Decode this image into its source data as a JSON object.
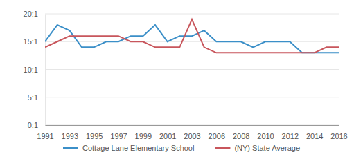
{
  "chart_data": {
    "type": "line",
    "categories": [
      "1991",
      null,
      "1993",
      null,
      "1995",
      null,
      "1997",
      null,
      "1999",
      null,
      "2001",
      null,
      "2003",
      null,
      "2006",
      null,
      "2008",
      null,
      "2010",
      null,
      "2012",
      null,
      "2014",
      null,
      "2016"
    ],
    "series": [
      {
        "name": "Cottage Lane Elementary School",
        "color": "#3b8fc8",
        "values": [
          15,
          18,
          17,
          14,
          14,
          15,
          15,
          16,
          16,
          18,
          15,
          16,
          16,
          17,
          15,
          15,
          15,
          14,
          15,
          15,
          15,
          13,
          13,
          13,
          13
        ]
      },
      {
        "name": "(NY) State Average",
        "color": "#c8565c",
        "values": [
          14,
          15,
          16,
          16,
          16,
          16,
          16,
          15,
          15,
          14,
          14,
          14,
          19,
          14,
          13,
          13,
          13,
          13,
          13,
          13,
          13,
          13,
          13,
          14,
          14
        ]
      }
    ],
    "ylim": [
      0,
      20
    ],
    "yticks": [
      {
        "value": 0,
        "label": "0:1"
      },
      {
        "value": 5,
        "label": "5:1"
      },
      {
        "value": 10,
        "label": "10:1"
      },
      {
        "value": 15,
        "label": "15:1"
      },
      {
        "value": 20,
        "label": "20:1"
      }
    ],
    "grid": true,
    "legend": "bottom"
  }
}
